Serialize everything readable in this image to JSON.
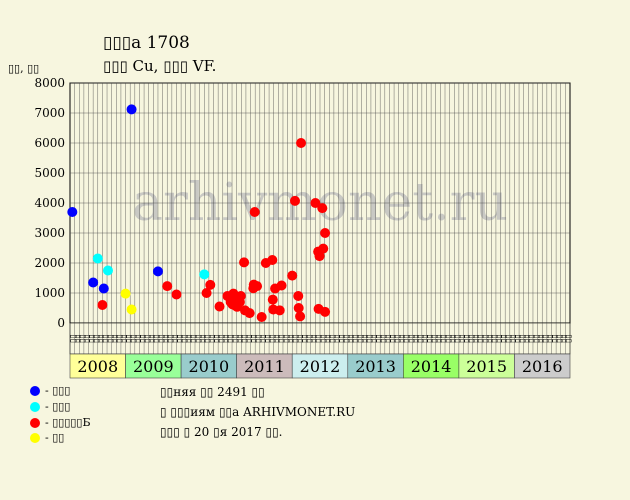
{
  "header": {
    "title": "▯▯▯а 1708",
    "subtitle": "▯▯▯ Cu, ▯▯▯ VF.",
    "ylabel": "▯▯, ▯▯"
  },
  "watermark": "arhivmonet.ru",
  "legend": [
    {
      "color": "#0000ff",
      "label": "- ▯▯▯",
      "icon": "blue-dot"
    },
    {
      "color": "#00ffff",
      "label": "- ▯▯▯",
      "icon": "cyan-dot"
    },
    {
      "color": "#ff0000",
      "label": "- ▯▯▯▯▯Б",
      "icon": "red-dot"
    },
    {
      "color": "#ffff00",
      "label": "- ▯▯",
      "icon": "yellow-dot"
    }
  ],
  "footer": {
    "line1": "▯▯няя ▯▯ 2491 ▯▯",
    "line2": "▯ ▯▯▯иям ▯▯а ARHIVMONET.RU",
    "line3": "▯▯▯ ▯ 20 ▯я 2017 ▯▯."
  },
  "chart_data": {
    "type": "scatter",
    "ylim": [
      0,
      8000
    ],
    "y_ticks": [
      0,
      1000,
      2000,
      3000,
      4000,
      5000,
      6000,
      7000,
      8000
    ],
    "grid": true,
    "years": [
      {
        "label": "2008",
        "color": "#ffff99"
      },
      {
        "label": "2009",
        "color": "#99ff99"
      },
      {
        "label": "2010",
        "color": "#99cccc"
      },
      {
        "label": "2011",
        "color": "#ccbbbb"
      },
      {
        "label": "2012",
        "color": "#cceeee"
      },
      {
        "label": "2013",
        "color": "#99cccc"
      },
      {
        "label": "2014",
        "color": "#99ff66"
      },
      {
        "label": "2015",
        "color": "#ccff99"
      },
      {
        "label": "2016",
        "color": "#cccccc"
      }
    ],
    "months": [
      "▯▯",
      "▯▯",
      "▯▯",
      "▯▯",
      "▯▯",
      "▯▯",
      "▯▯",
      "▯▯",
      "▯▯",
      "▯▯",
      "▯▯",
      "▯▯"
    ],
    "series": [
      {
        "color": "#0000ff",
        "points": [
          [
            0,
            3700
          ],
          [
            4.5,
            1350
          ],
          [
            6.8,
            1150
          ],
          [
            12.8,
            7120
          ],
          [
            18.5,
            1720
          ]
        ]
      },
      {
        "color": "#00ffff",
        "points": [
          [
            5.5,
            2150
          ],
          [
            7.7,
            1750
          ],
          [
            28.5,
            1620
          ]
        ]
      },
      {
        "color": "#ffff00",
        "points": [
          [
            11.5,
            980
          ],
          [
            12.8,
            450
          ]
        ]
      },
      {
        "color": "#ff0000",
        "points": [
          [
            6.5,
            600
          ],
          [
            20.5,
            1230
          ],
          [
            22.5,
            950
          ],
          [
            29,
            1000
          ],
          [
            29.8,
            1270
          ],
          [
            31.8,
            550
          ],
          [
            33.5,
            900
          ],
          [
            34.2,
            700
          ],
          [
            34.6,
            620
          ],
          [
            34.8,
            980
          ],
          [
            35.1,
            750
          ],
          [
            35.3,
            570
          ],
          [
            35.6,
            540
          ],
          [
            36.2,
            700
          ],
          [
            36.4,
            900
          ],
          [
            37.1,
            2020
          ],
          [
            37.3,
            420
          ],
          [
            38.3,
            330
          ],
          [
            39.1,
            1160
          ],
          [
            39.2,
            1280
          ],
          [
            39.4,
            3700
          ],
          [
            39.9,
            1230
          ],
          [
            40.9,
            200
          ],
          [
            41.8,
            2000
          ],
          [
            43.2,
            2100
          ],
          [
            43.3,
            780
          ],
          [
            43.4,
            450
          ],
          [
            43.8,
            1150
          ],
          [
            44.8,
            420
          ],
          [
            45.2,
            1250
          ],
          [
            47.5,
            1580
          ],
          [
            48.1,
            4070
          ],
          [
            48.8,
            900
          ],
          [
            48.9,
            500
          ],
          [
            49.2,
            220
          ],
          [
            49.4,
            6000
          ],
          [
            52.5,
            4000
          ],
          [
            53.1,
            2380
          ],
          [
            53.4,
            2230
          ],
          [
            53.2,
            470
          ],
          [
            54,
            3830
          ],
          [
            54.2,
            2480
          ],
          [
            54.6,
            3000
          ],
          [
            54.6,
            370
          ]
        ]
      }
    ]
  }
}
